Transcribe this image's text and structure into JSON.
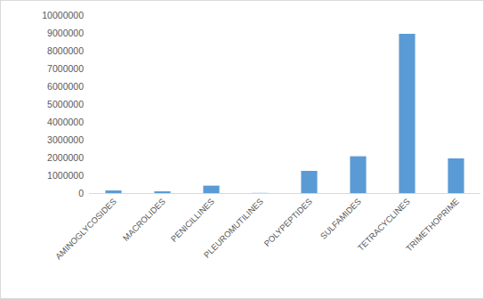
{
  "chart_data": {
    "type": "bar",
    "categories": [
      "AMINOGLYCOSIDES",
      "MACROLIDES",
      "PENICILLINES",
      "PLEUROMUTILINES",
      "POLYPEPTIDES",
      "SULFAMIDES",
      "TETRACYCLINES",
      "TRIMETHOPRIME"
    ],
    "values": [
      150000,
      100000,
      420000,
      10000,
      1250000,
      2070000,
      8950000,
      1950000
    ],
    "color": "#5b9bd5",
    "ylim": [
      0,
      10000000
    ],
    "yticks": [
      0,
      1000000,
      2000000,
      3000000,
      4000000,
      5000000,
      6000000,
      7000000,
      8000000,
      9000000,
      10000000
    ],
    "grid": false
  }
}
